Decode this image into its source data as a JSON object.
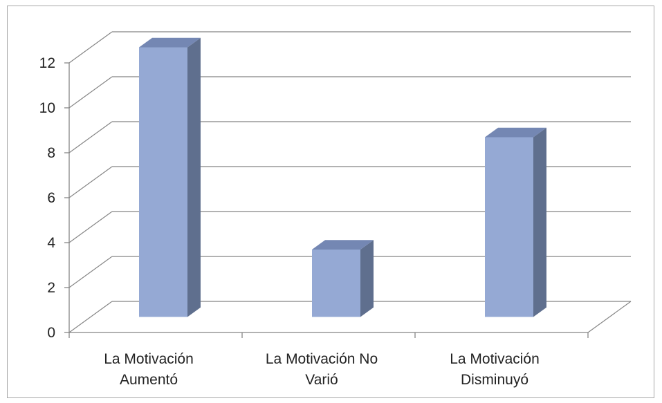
{
  "chart_data": {
    "type": "bar",
    "title": "",
    "xlabel": "",
    "ylabel": "",
    "categories": [
      [
        "La Motivación",
        "Aumentó"
      ],
      [
        "La Motivación No",
        "Varió"
      ],
      [
        "La Motivación",
        "Disminuyó"
      ]
    ],
    "values": [
      12,
      3,
      8
    ],
    "ylim": [
      0,
      12
    ],
    "yticks": [
      "0",
      "2",
      "4",
      "6",
      "8",
      "10",
      "12"
    ],
    "grid": true,
    "style": "3d-column",
    "colors": {
      "bar_front": "#95a9d4",
      "bar_side": "#5f6f8e",
      "bar_top": "#7487b3",
      "grid": "#858585",
      "axis": "#858585"
    }
  }
}
